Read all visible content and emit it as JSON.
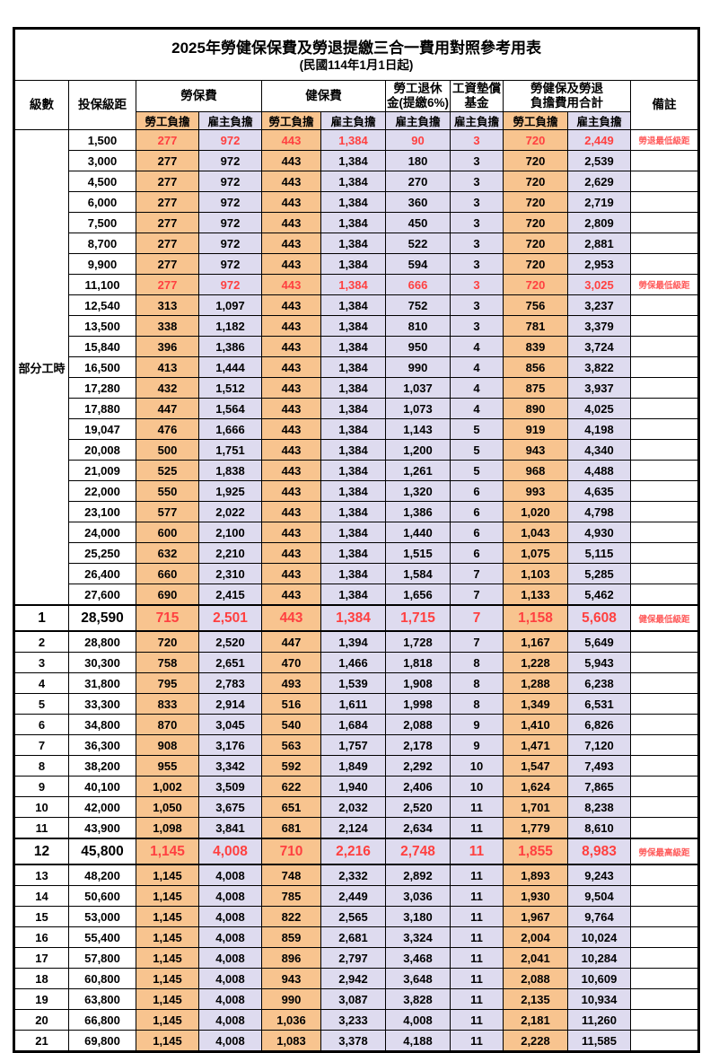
{
  "title": {
    "main": "2025年勞健保保費及勞退提繳三合一費用對照參考用表",
    "sub": "(民國114年1月1日起)"
  },
  "header": {
    "level": "級數",
    "bracket": "投保級距",
    "labor_group": "勞保費",
    "health_group": "健保費",
    "pension_l1": "勞工退休",
    "pension_l2": "金(提繳6%)",
    "fund_l1": "工資墊償",
    "fund_l2": "基金",
    "total_l1": "勞健保及勞退",
    "total_l2": "負擔費用合計",
    "remark": "備註",
    "employee": "勞工負擔",
    "employer": "雇主負擔"
  },
  "colors": {
    "employee_bg": "#F8C48F",
    "employer_bg": "#DEDBEF",
    "highlight_red": "#FF4040",
    "remark_red": "#FF5B5B",
    "border": "#000000"
  },
  "table": {
    "part_time_label": "部分工時",
    "part_time_rowspan": 23,
    "rows": [
      {
        "lv": "",
        "amt": "1,500",
        "a": "277",
        "b": "972",
        "c": "443",
        "d": "1,384",
        "e": "90",
        "f": "3",
        "g": "720",
        "h": "2,449",
        "note": "勞退最低級距",
        "red": true,
        "big": false
      },
      {
        "lv": "",
        "amt": "3,000",
        "a": "277",
        "b": "972",
        "c": "443",
        "d": "1,384",
        "e": "180",
        "f": "3",
        "g": "720",
        "h": "2,539",
        "note": "",
        "red": false,
        "big": false
      },
      {
        "lv": "",
        "amt": "4,500",
        "a": "277",
        "b": "972",
        "c": "443",
        "d": "1,384",
        "e": "270",
        "f": "3",
        "g": "720",
        "h": "2,629",
        "note": "",
        "red": false,
        "big": false
      },
      {
        "lv": "",
        "amt": "6,000",
        "a": "277",
        "b": "972",
        "c": "443",
        "d": "1,384",
        "e": "360",
        "f": "3",
        "g": "720",
        "h": "2,719",
        "note": "",
        "red": false,
        "big": false
      },
      {
        "lv": "",
        "amt": "7,500",
        "a": "277",
        "b": "972",
        "c": "443",
        "d": "1,384",
        "e": "450",
        "f": "3",
        "g": "720",
        "h": "2,809",
        "note": "",
        "red": false,
        "big": false
      },
      {
        "lv": "",
        "amt": "8,700",
        "a": "277",
        "b": "972",
        "c": "443",
        "d": "1,384",
        "e": "522",
        "f": "3",
        "g": "720",
        "h": "2,881",
        "note": "",
        "red": false,
        "big": false
      },
      {
        "lv": "",
        "amt": "9,900",
        "a": "277",
        "b": "972",
        "c": "443",
        "d": "1,384",
        "e": "594",
        "f": "3",
        "g": "720",
        "h": "2,953",
        "note": "",
        "red": false,
        "big": false
      },
      {
        "lv": "",
        "amt": "11,100",
        "a": "277",
        "b": "972",
        "c": "443",
        "d": "1,384",
        "e": "666",
        "f": "3",
        "g": "720",
        "h": "3,025",
        "note": "勞保最低級距",
        "red": true,
        "big": false
      },
      {
        "lv": "",
        "amt": "12,540",
        "a": "313",
        "b": "1,097",
        "c": "443",
        "d": "1,384",
        "e": "752",
        "f": "3",
        "g": "756",
        "h": "3,237",
        "note": "",
        "red": false,
        "big": false
      },
      {
        "lv": "",
        "amt": "13,500",
        "a": "338",
        "b": "1,182",
        "c": "443",
        "d": "1,384",
        "e": "810",
        "f": "3",
        "g": "781",
        "h": "3,379",
        "note": "",
        "red": false,
        "big": false
      },
      {
        "lv": "",
        "amt": "15,840",
        "a": "396",
        "b": "1,386",
        "c": "443",
        "d": "1,384",
        "e": "950",
        "f": "4",
        "g": "839",
        "h": "3,724",
        "note": "",
        "red": false,
        "big": false
      },
      {
        "lv": "",
        "amt": "16,500",
        "a": "413",
        "b": "1,444",
        "c": "443",
        "d": "1,384",
        "e": "990",
        "f": "4",
        "g": "856",
        "h": "3,822",
        "note": "",
        "red": false,
        "big": false
      },
      {
        "lv": "",
        "amt": "17,280",
        "a": "432",
        "b": "1,512",
        "c": "443",
        "d": "1,384",
        "e": "1,037",
        "f": "4",
        "g": "875",
        "h": "3,937",
        "note": "",
        "red": false,
        "big": false
      },
      {
        "lv": "",
        "amt": "17,880",
        "a": "447",
        "b": "1,564",
        "c": "443",
        "d": "1,384",
        "e": "1,073",
        "f": "4",
        "g": "890",
        "h": "4,025",
        "note": "",
        "red": false,
        "big": false
      },
      {
        "lv": "",
        "amt": "19,047",
        "a": "476",
        "b": "1,666",
        "c": "443",
        "d": "1,384",
        "e": "1,143",
        "f": "5",
        "g": "919",
        "h": "4,198",
        "note": "",
        "red": false,
        "big": false
      },
      {
        "lv": "",
        "amt": "20,008",
        "a": "500",
        "b": "1,751",
        "c": "443",
        "d": "1,384",
        "e": "1,200",
        "f": "5",
        "g": "943",
        "h": "4,340",
        "note": "",
        "red": false,
        "big": false
      },
      {
        "lv": "",
        "amt": "21,009",
        "a": "525",
        "b": "1,838",
        "c": "443",
        "d": "1,384",
        "e": "1,261",
        "f": "5",
        "g": "968",
        "h": "4,488",
        "note": "",
        "red": false,
        "big": false
      },
      {
        "lv": "",
        "amt": "22,000",
        "a": "550",
        "b": "1,925",
        "c": "443",
        "d": "1,384",
        "e": "1,320",
        "f": "6",
        "g": "993",
        "h": "4,635",
        "note": "",
        "red": false,
        "big": false
      },
      {
        "lv": "",
        "amt": "23,100",
        "a": "577",
        "b": "2,022",
        "c": "443",
        "d": "1,384",
        "e": "1,386",
        "f": "6",
        "g": "1,020",
        "h": "4,798",
        "note": "",
        "red": false,
        "big": false
      },
      {
        "lv": "",
        "amt": "24,000",
        "a": "600",
        "b": "2,100",
        "c": "443",
        "d": "1,384",
        "e": "1,440",
        "f": "6",
        "g": "1,043",
        "h": "4,930",
        "note": "",
        "red": false,
        "big": false
      },
      {
        "lv": "",
        "amt": "25,250",
        "a": "632",
        "b": "2,210",
        "c": "443",
        "d": "1,384",
        "e": "1,515",
        "f": "6",
        "g": "1,075",
        "h": "5,115",
        "note": "",
        "red": false,
        "big": false
      },
      {
        "lv": "",
        "amt": "26,400",
        "a": "660",
        "b": "2,310",
        "c": "443",
        "d": "1,384",
        "e": "1,584",
        "f": "7",
        "g": "1,103",
        "h": "5,285",
        "note": "",
        "red": false,
        "big": false
      },
      {
        "lv": "",
        "amt": "27,600",
        "a": "690",
        "b": "2,415",
        "c": "443",
        "d": "1,384",
        "e": "1,656",
        "f": "7",
        "g": "1,133",
        "h": "5,462",
        "note": "",
        "red": false,
        "big": false
      },
      {
        "lv": "1",
        "amt": "28,590",
        "a": "715",
        "b": "2,501",
        "c": "443",
        "d": "1,384",
        "e": "1,715",
        "f": "7",
        "g": "1,158",
        "h": "5,608",
        "note": "健保最低級距",
        "red": true,
        "big": true
      },
      {
        "lv": "2",
        "amt": "28,800",
        "a": "720",
        "b": "2,520",
        "c": "447",
        "d": "1,394",
        "e": "1,728",
        "f": "7",
        "g": "1,167",
        "h": "5,649",
        "note": "",
        "red": false,
        "big": false
      },
      {
        "lv": "3",
        "amt": "30,300",
        "a": "758",
        "b": "2,651",
        "c": "470",
        "d": "1,466",
        "e": "1,818",
        "f": "8",
        "g": "1,228",
        "h": "5,943",
        "note": "",
        "red": false,
        "big": false
      },
      {
        "lv": "4",
        "amt": "31,800",
        "a": "795",
        "b": "2,783",
        "c": "493",
        "d": "1,539",
        "e": "1,908",
        "f": "8",
        "g": "1,288",
        "h": "6,238",
        "note": "",
        "red": false,
        "big": false
      },
      {
        "lv": "5",
        "amt": "33,300",
        "a": "833",
        "b": "2,914",
        "c": "516",
        "d": "1,611",
        "e": "1,998",
        "f": "8",
        "g": "1,349",
        "h": "6,531",
        "note": "",
        "red": false,
        "big": false
      },
      {
        "lv": "6",
        "amt": "34,800",
        "a": "870",
        "b": "3,045",
        "c": "540",
        "d": "1,684",
        "e": "2,088",
        "f": "9",
        "g": "1,410",
        "h": "6,826",
        "note": "",
        "red": false,
        "big": false
      },
      {
        "lv": "7",
        "amt": "36,300",
        "a": "908",
        "b": "3,176",
        "c": "563",
        "d": "1,757",
        "e": "2,178",
        "f": "9",
        "g": "1,471",
        "h": "7,120",
        "note": "",
        "red": false,
        "big": false
      },
      {
        "lv": "8",
        "amt": "38,200",
        "a": "955",
        "b": "3,342",
        "c": "592",
        "d": "1,849",
        "e": "2,292",
        "f": "10",
        "g": "1,547",
        "h": "7,493",
        "note": "",
        "red": false,
        "big": false
      },
      {
        "lv": "9",
        "amt": "40,100",
        "a": "1,002",
        "b": "3,509",
        "c": "622",
        "d": "1,940",
        "e": "2,406",
        "f": "10",
        "g": "1,624",
        "h": "7,865",
        "note": "",
        "red": false,
        "big": false
      },
      {
        "lv": "10",
        "amt": "42,000",
        "a": "1,050",
        "b": "3,675",
        "c": "651",
        "d": "2,032",
        "e": "2,520",
        "f": "11",
        "g": "1,701",
        "h": "8,238",
        "note": "",
        "red": false,
        "big": false
      },
      {
        "lv": "11",
        "amt": "43,900",
        "a": "1,098",
        "b": "3,841",
        "c": "681",
        "d": "2,124",
        "e": "2,634",
        "f": "11",
        "g": "1,779",
        "h": "8,610",
        "note": "",
        "red": false,
        "big": false
      },
      {
        "lv": "12",
        "amt": "45,800",
        "a": "1,145",
        "b": "4,008",
        "c": "710",
        "d": "2,216",
        "e": "2,748",
        "f": "11",
        "g": "1,855",
        "h": "8,983",
        "note": "勞保最高級距",
        "red": true,
        "big": true
      },
      {
        "lv": "13",
        "amt": "48,200",
        "a": "1,145",
        "b": "4,008",
        "c": "748",
        "d": "2,332",
        "e": "2,892",
        "f": "11",
        "g": "1,893",
        "h": "9,243",
        "note": "",
        "red": false,
        "big": false
      },
      {
        "lv": "14",
        "amt": "50,600",
        "a": "1,145",
        "b": "4,008",
        "c": "785",
        "d": "2,449",
        "e": "3,036",
        "f": "11",
        "g": "1,930",
        "h": "9,504",
        "note": "",
        "red": false,
        "big": false
      },
      {
        "lv": "15",
        "amt": "53,000",
        "a": "1,145",
        "b": "4,008",
        "c": "822",
        "d": "2,565",
        "e": "3,180",
        "f": "11",
        "g": "1,967",
        "h": "9,764",
        "note": "",
        "red": false,
        "big": false
      },
      {
        "lv": "16",
        "amt": "55,400",
        "a": "1,145",
        "b": "4,008",
        "c": "859",
        "d": "2,681",
        "e": "3,324",
        "f": "11",
        "g": "2,004",
        "h": "10,024",
        "note": "",
        "red": false,
        "big": false
      },
      {
        "lv": "17",
        "amt": "57,800",
        "a": "1,145",
        "b": "4,008",
        "c": "896",
        "d": "2,797",
        "e": "3,468",
        "f": "11",
        "g": "2,041",
        "h": "10,284",
        "note": "",
        "red": false,
        "big": false
      },
      {
        "lv": "18",
        "amt": "60,800",
        "a": "1,145",
        "b": "4,008",
        "c": "943",
        "d": "2,942",
        "e": "3,648",
        "f": "11",
        "g": "2,088",
        "h": "10,609",
        "note": "",
        "red": false,
        "big": false
      },
      {
        "lv": "19",
        "amt": "63,800",
        "a": "1,145",
        "b": "4,008",
        "c": "990",
        "d": "3,087",
        "e": "3,828",
        "f": "11",
        "g": "2,135",
        "h": "10,934",
        "note": "",
        "red": false,
        "big": false
      },
      {
        "lv": "20",
        "amt": "66,800",
        "a": "1,145",
        "b": "4,008",
        "c": "1,036",
        "d": "3,233",
        "e": "4,008",
        "f": "11",
        "g": "2,181",
        "h": "11,260",
        "note": "",
        "red": false,
        "big": false
      },
      {
        "lv": "21",
        "amt": "69,800",
        "a": "1,145",
        "b": "4,008",
        "c": "1,083",
        "d": "3,378",
        "e": "4,188",
        "f": "11",
        "g": "2,228",
        "h": "11,585",
        "note": "",
        "red": false,
        "big": false
      }
    ]
  }
}
